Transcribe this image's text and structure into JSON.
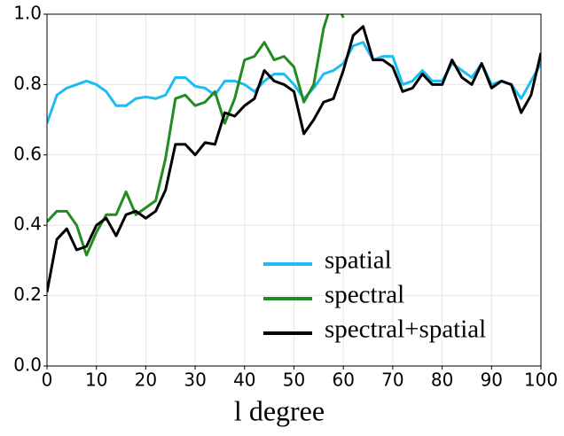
{
  "chart_data": {
    "type": "line",
    "x_label": "l degree",
    "x": [
      0,
      2,
      4,
      6,
      8,
      10,
      12,
      14,
      16,
      18,
      20,
      22,
      24,
      26,
      28,
      30,
      32,
      34,
      36,
      38,
      40,
      42,
      44,
      46,
      48,
      50,
      52,
      54,
      56,
      58,
      60,
      62,
      64,
      66,
      68,
      70,
      72,
      74,
      76,
      78,
      80,
      82,
      84,
      86,
      88,
      90,
      92,
      94,
      96,
      98,
      100
    ],
    "series": [
      {
        "name": "spatial",
        "color": "#1ebcf0",
        "values": [
          0.69,
          0.77,
          0.79,
          0.8,
          0.81,
          0.8,
          0.78,
          0.74,
          0.74,
          0.76,
          0.765,
          0.76,
          0.77,
          0.82,
          0.82,
          0.795,
          0.79,
          0.77,
          0.81,
          0.81,
          0.8,
          0.78,
          0.81,
          0.83,
          0.83,
          0.8,
          0.76,
          0.79,
          0.83,
          0.84,
          0.86,
          0.91,
          0.92,
          0.87,
          0.88,
          0.88,
          0.8,
          0.81,
          0.84,
          0.81,
          0.81,
          0.86,
          0.84,
          0.82,
          0.86,
          0.8,
          0.81,
          0.8,
          0.76,
          0.81,
          0.86
        ]
      },
      {
        "name": "spectral",
        "color": "#228b22",
        "values": [
          0.41,
          0.44,
          0.44,
          0.4,
          0.315,
          0.38,
          0.43,
          0.43,
          0.495,
          0.43,
          0.45,
          0.47,
          0.59,
          0.76,
          0.77,
          0.74,
          0.75,
          0.78,
          0.69,
          0.76,
          0.87,
          0.88,
          0.92,
          0.87,
          0.88,
          0.85,
          0.75,
          0.8,
          0.96,
          1.05,
          0.99,
          null,
          null,
          null,
          null,
          null,
          null,
          null,
          null,
          null,
          null,
          null,
          null,
          null,
          null,
          null,
          null,
          null,
          null,
          null,
          null
        ]
      },
      {
        "name": "spectral+spatial",
        "color": "#000000",
        "values": [
          0.21,
          0.36,
          0.39,
          0.33,
          0.34,
          0.4,
          0.42,
          0.37,
          0.43,
          0.44,
          0.42,
          0.44,
          0.5,
          0.63,
          0.63,
          0.6,
          0.635,
          0.63,
          0.72,
          0.71,
          0.74,
          0.76,
          0.84,
          0.81,
          0.8,
          0.78,
          0.66,
          0.7,
          0.75,
          0.76,
          0.84,
          0.94,
          0.965,
          0.87,
          0.87,
          0.85,
          0.78,
          0.79,
          0.83,
          0.8,
          0.8,
          0.87,
          0.82,
          0.8,
          0.86,
          0.79,
          0.81,
          0.8,
          0.72,
          0.77,
          0.89
        ]
      }
    ],
    "xlim": [
      0,
      100
    ],
    "xticks": [
      0,
      10,
      20,
      30,
      40,
      50,
      60,
      70,
      80,
      90,
      100
    ],
    "ylim": [
      0,
      1
    ],
    "yticks": [
      {
        "value": 0,
        "label": "0.0"
      },
      0.2,
      0.4,
      0.6,
      0.8,
      {
        "value": 1,
        "label": "1.0"
      }
    ],
    "grid": true,
    "legend": "lower right"
  }
}
